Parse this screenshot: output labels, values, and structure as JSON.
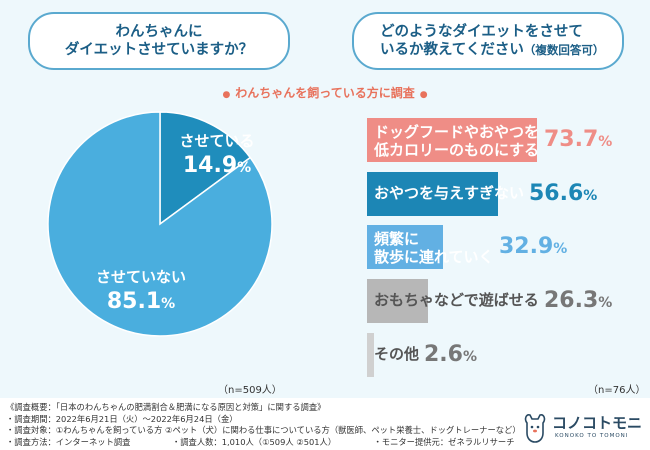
{
  "questions": {
    "left": [
      "わんちゃんに",
      "ダイエットさせていますか？"
    ],
    "right_line1": "どのようなダイエットをさせて",
    "right_line2": "いるか教えてください",
    "right_note": "（複数回答可）"
  },
  "subtitle": "わんちゃんを飼っている方に調査",
  "colors": {
    "accent": "#e8725c",
    "pie_blue_dark": "#1f8dbc",
    "pie_blue_light": "#4aaede",
    "bar_red": "#ef8d86",
    "bar_blue": "#1c86b5",
    "bar_light_blue": "#62b0e3",
    "bar_gray": "#b7b7b7",
    "bar_light_gray": "#d0d0d0"
  },
  "chart_data": [
    {
      "type": "pie",
      "title": "わんちゃんにダイエットさせていますか？",
      "slices": [
        {
          "label": "させている",
          "value": 14.9,
          "value_text": "14.9",
          "color": "#1f8dbc"
        },
        {
          "label": "させていない",
          "value": 85.1,
          "value_text": "85.1",
          "color": "#4aaede"
        }
      ],
      "n_label": "（n=509人）"
    },
    {
      "type": "bar",
      "orientation": "horizontal",
      "title": "どのようなダイエットをさせているか教えてください（複数回答可）",
      "categories": [
        [
          "ドッグフードやおやつを",
          "低カロリーのものにする"
        ],
        [
          "おやつを与えすぎない"
        ],
        [
          "頻繁に",
          "散歩に連れていく"
        ],
        [
          "おもちゃなどで遊ばせる"
        ],
        [
          "その他"
        ]
      ],
      "values": [
        73.7,
        56.6,
        32.9,
        26.3,
        2.6
      ],
      "value_texts": [
        "73.7",
        "56.6",
        "32.9",
        "26.3",
        "2.6"
      ],
      "unit": "%",
      "colors": [
        "#ef8d86",
        "#1c86b5",
        "#62b0e3",
        "#b7b7b7",
        "#d0d0d0"
      ],
      "value_colors": [
        "#ef8d86",
        "#1c86b5",
        "#62b0e3",
        "#777777",
        "#777777"
      ],
      "n_label": "（n=76人）"
    }
  ],
  "notes": [
    "《調査概要：「日本のわんちゃんの肥満割合＆肥満になる原因と対策」に関する調査》",
    "・調査期間：2022年6月21日（火）～2022年6月24日（金）",
    "・調査対象：①わんちゃんを飼っている方 ②ペット（犬）に関わる仕事についている方（獣医師、ペット栄養士、ドッグトレーナーなど）",
    "・調査方法：インターネット調査　　　　　・調査人数：1,010人（①509人 ②501人）　　　　　・モニター提供元：ゼネラルリサーチ"
  ],
  "logo": {
    "name": "コノコトモニ",
    "sub": "KONOKO TO TOMONI"
  }
}
